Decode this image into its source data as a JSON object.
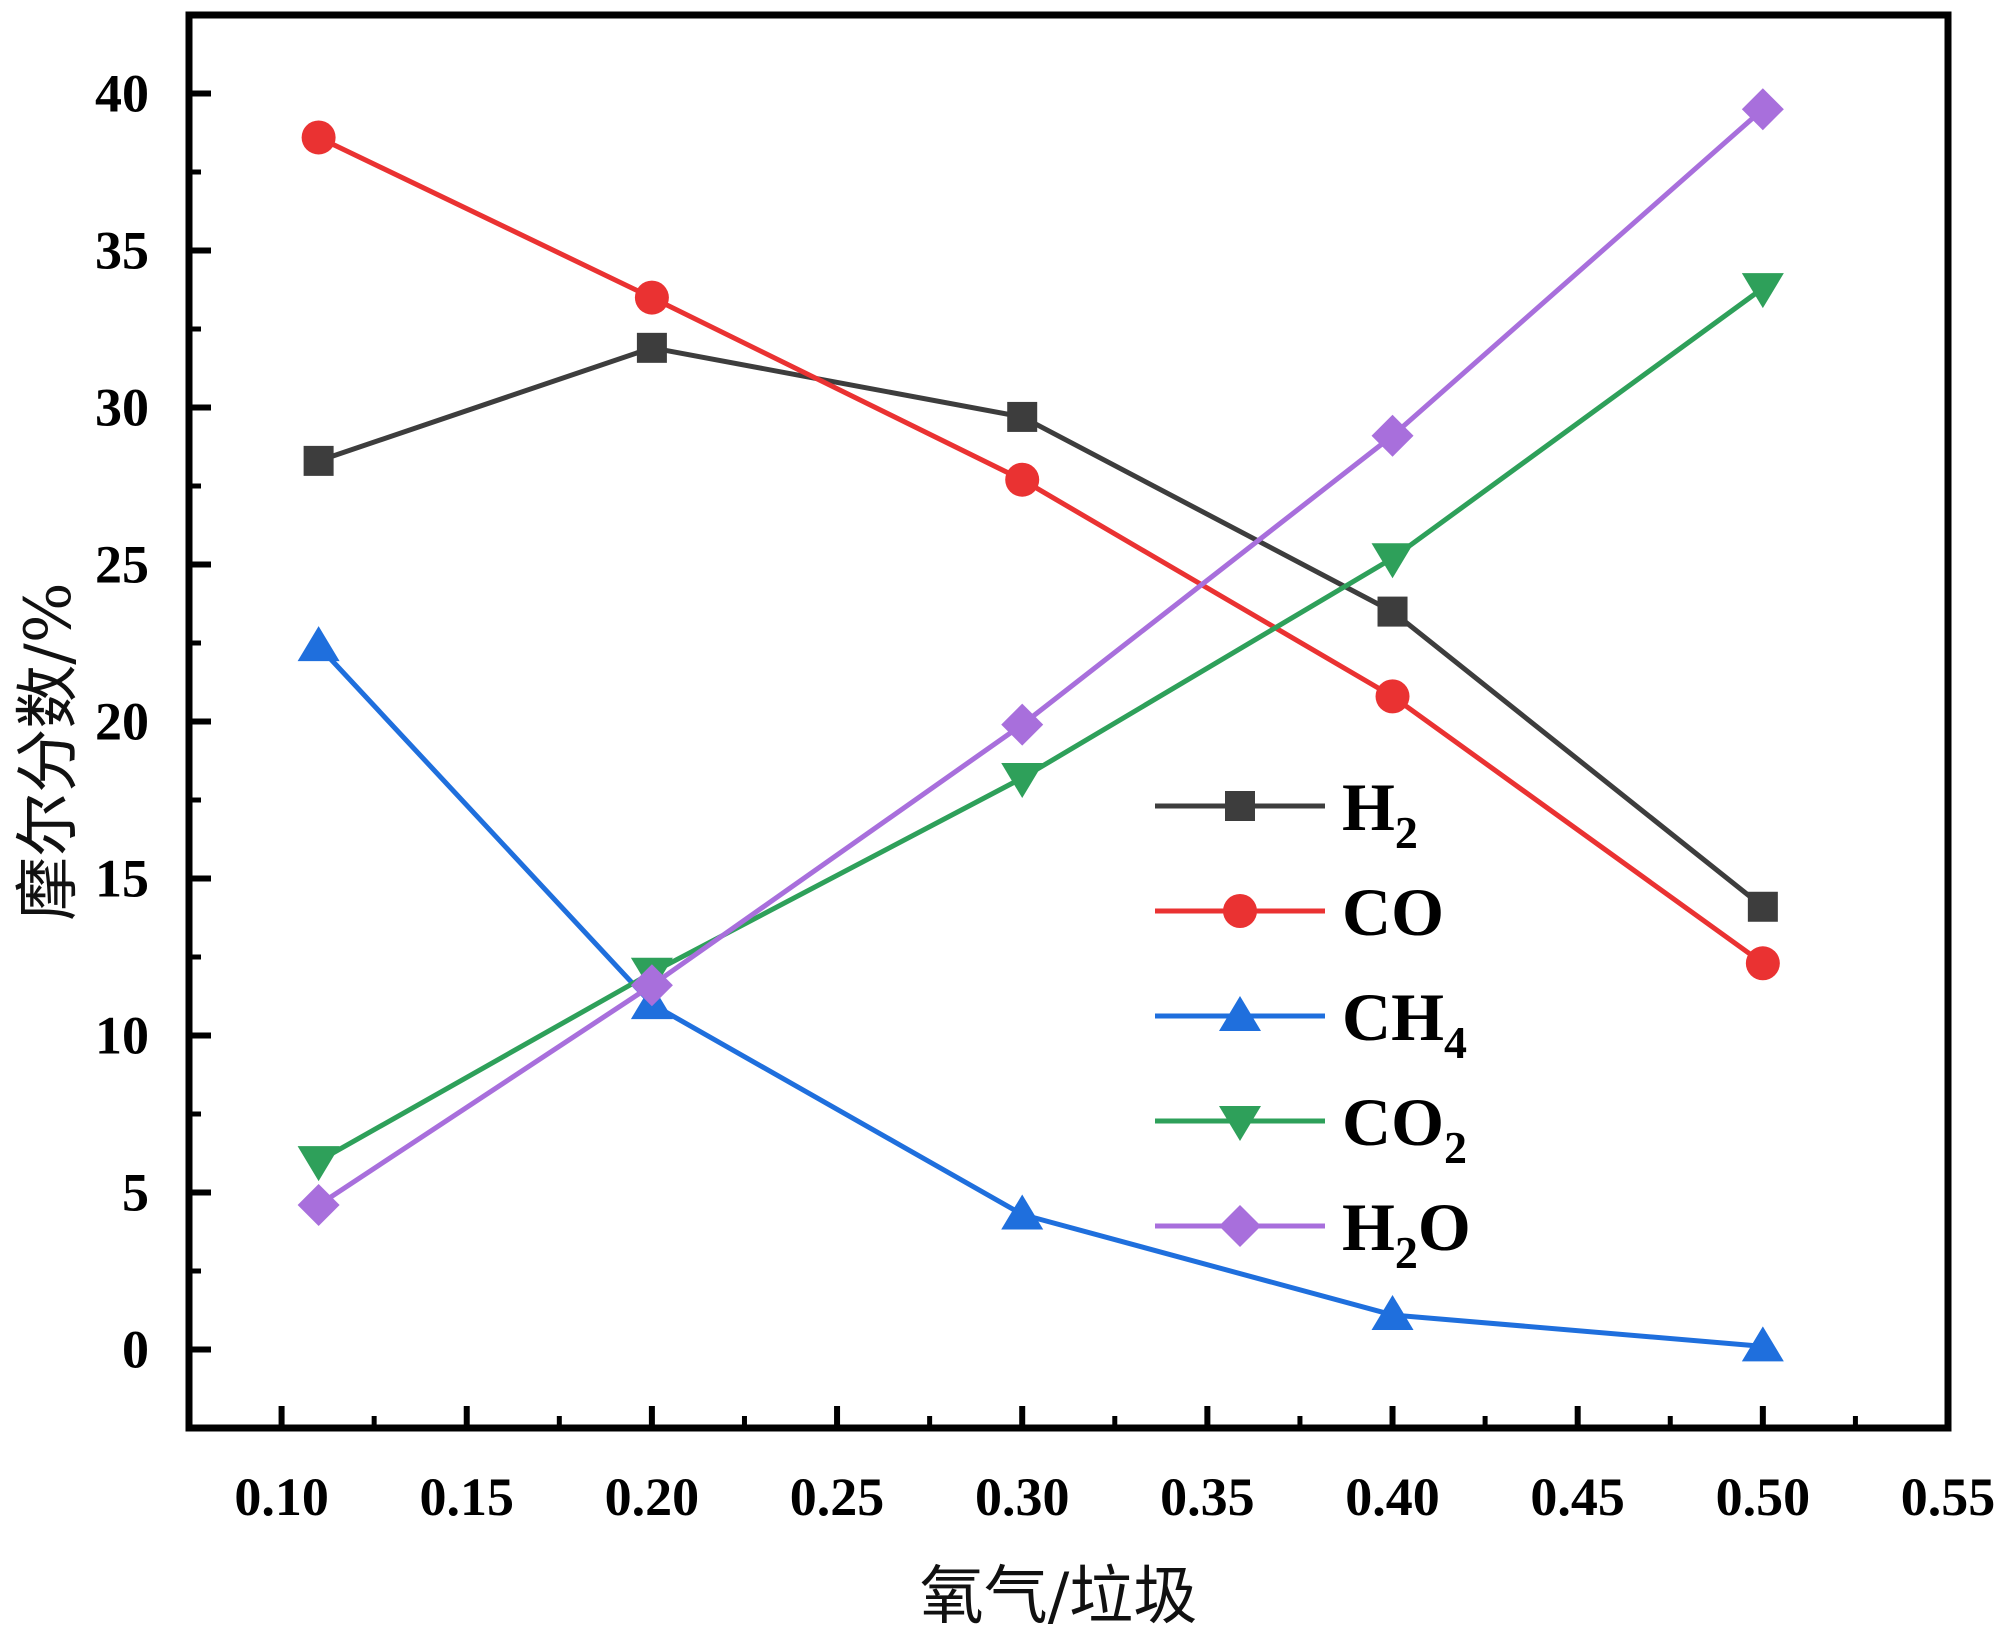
{
  "chart_data": {
    "type": "line",
    "title": "",
    "xlabel": "氧气/垃圾",
    "ylabel": "摩尔分数/%",
    "xlim": [
      0.075,
      0.55
    ],
    "ylim": [
      -2.5,
      42.5
    ],
    "xticks": [
      "0.10",
      "0.15",
      "0.20",
      "0.25",
      "0.30",
      "0.35",
      "0.40",
      "0.45",
      "0.50",
      "0.55"
    ],
    "yticks": [
      "0",
      "5",
      "10",
      "15",
      "20",
      "25",
      "30",
      "35",
      "40"
    ],
    "x": [
      0.11,
      0.2,
      0.3,
      0.4,
      0.5
    ],
    "legend_position": "center-right",
    "series": [
      {
        "name": "H",
        "sub": "2",
        "suffix": "",
        "color": "#3d3d3d",
        "marker": "square",
        "values": [
          28.3,
          31.9,
          29.7,
          23.5,
          14.1
        ]
      },
      {
        "name": "CO",
        "sub": "",
        "suffix": "",
        "color": "#ea3232",
        "marker": "circle",
        "values": [
          38.6,
          33.5,
          27.7,
          20.8,
          12.3
        ]
      },
      {
        "name": "CH",
        "sub": "4",
        "suffix": "",
        "color": "#1f6fdd",
        "marker": "triangle-up",
        "values": [
          22.4,
          11.0,
          4.3,
          1.1,
          0.1
        ]
      },
      {
        "name": "CO",
        "sub": "2",
        "suffix": "",
        "color": "#2ea05a",
        "marker": "triangle-down",
        "values": [
          6.0,
          12.0,
          18.2,
          25.2,
          33.8
        ]
      },
      {
        "name": "H",
        "sub": "2",
        "suffix": "O",
        "color": "#a86fdc",
        "marker": "diamond",
        "values": [
          4.6,
          11.6,
          19.9,
          29.1,
          39.5
        ]
      }
    ]
  }
}
